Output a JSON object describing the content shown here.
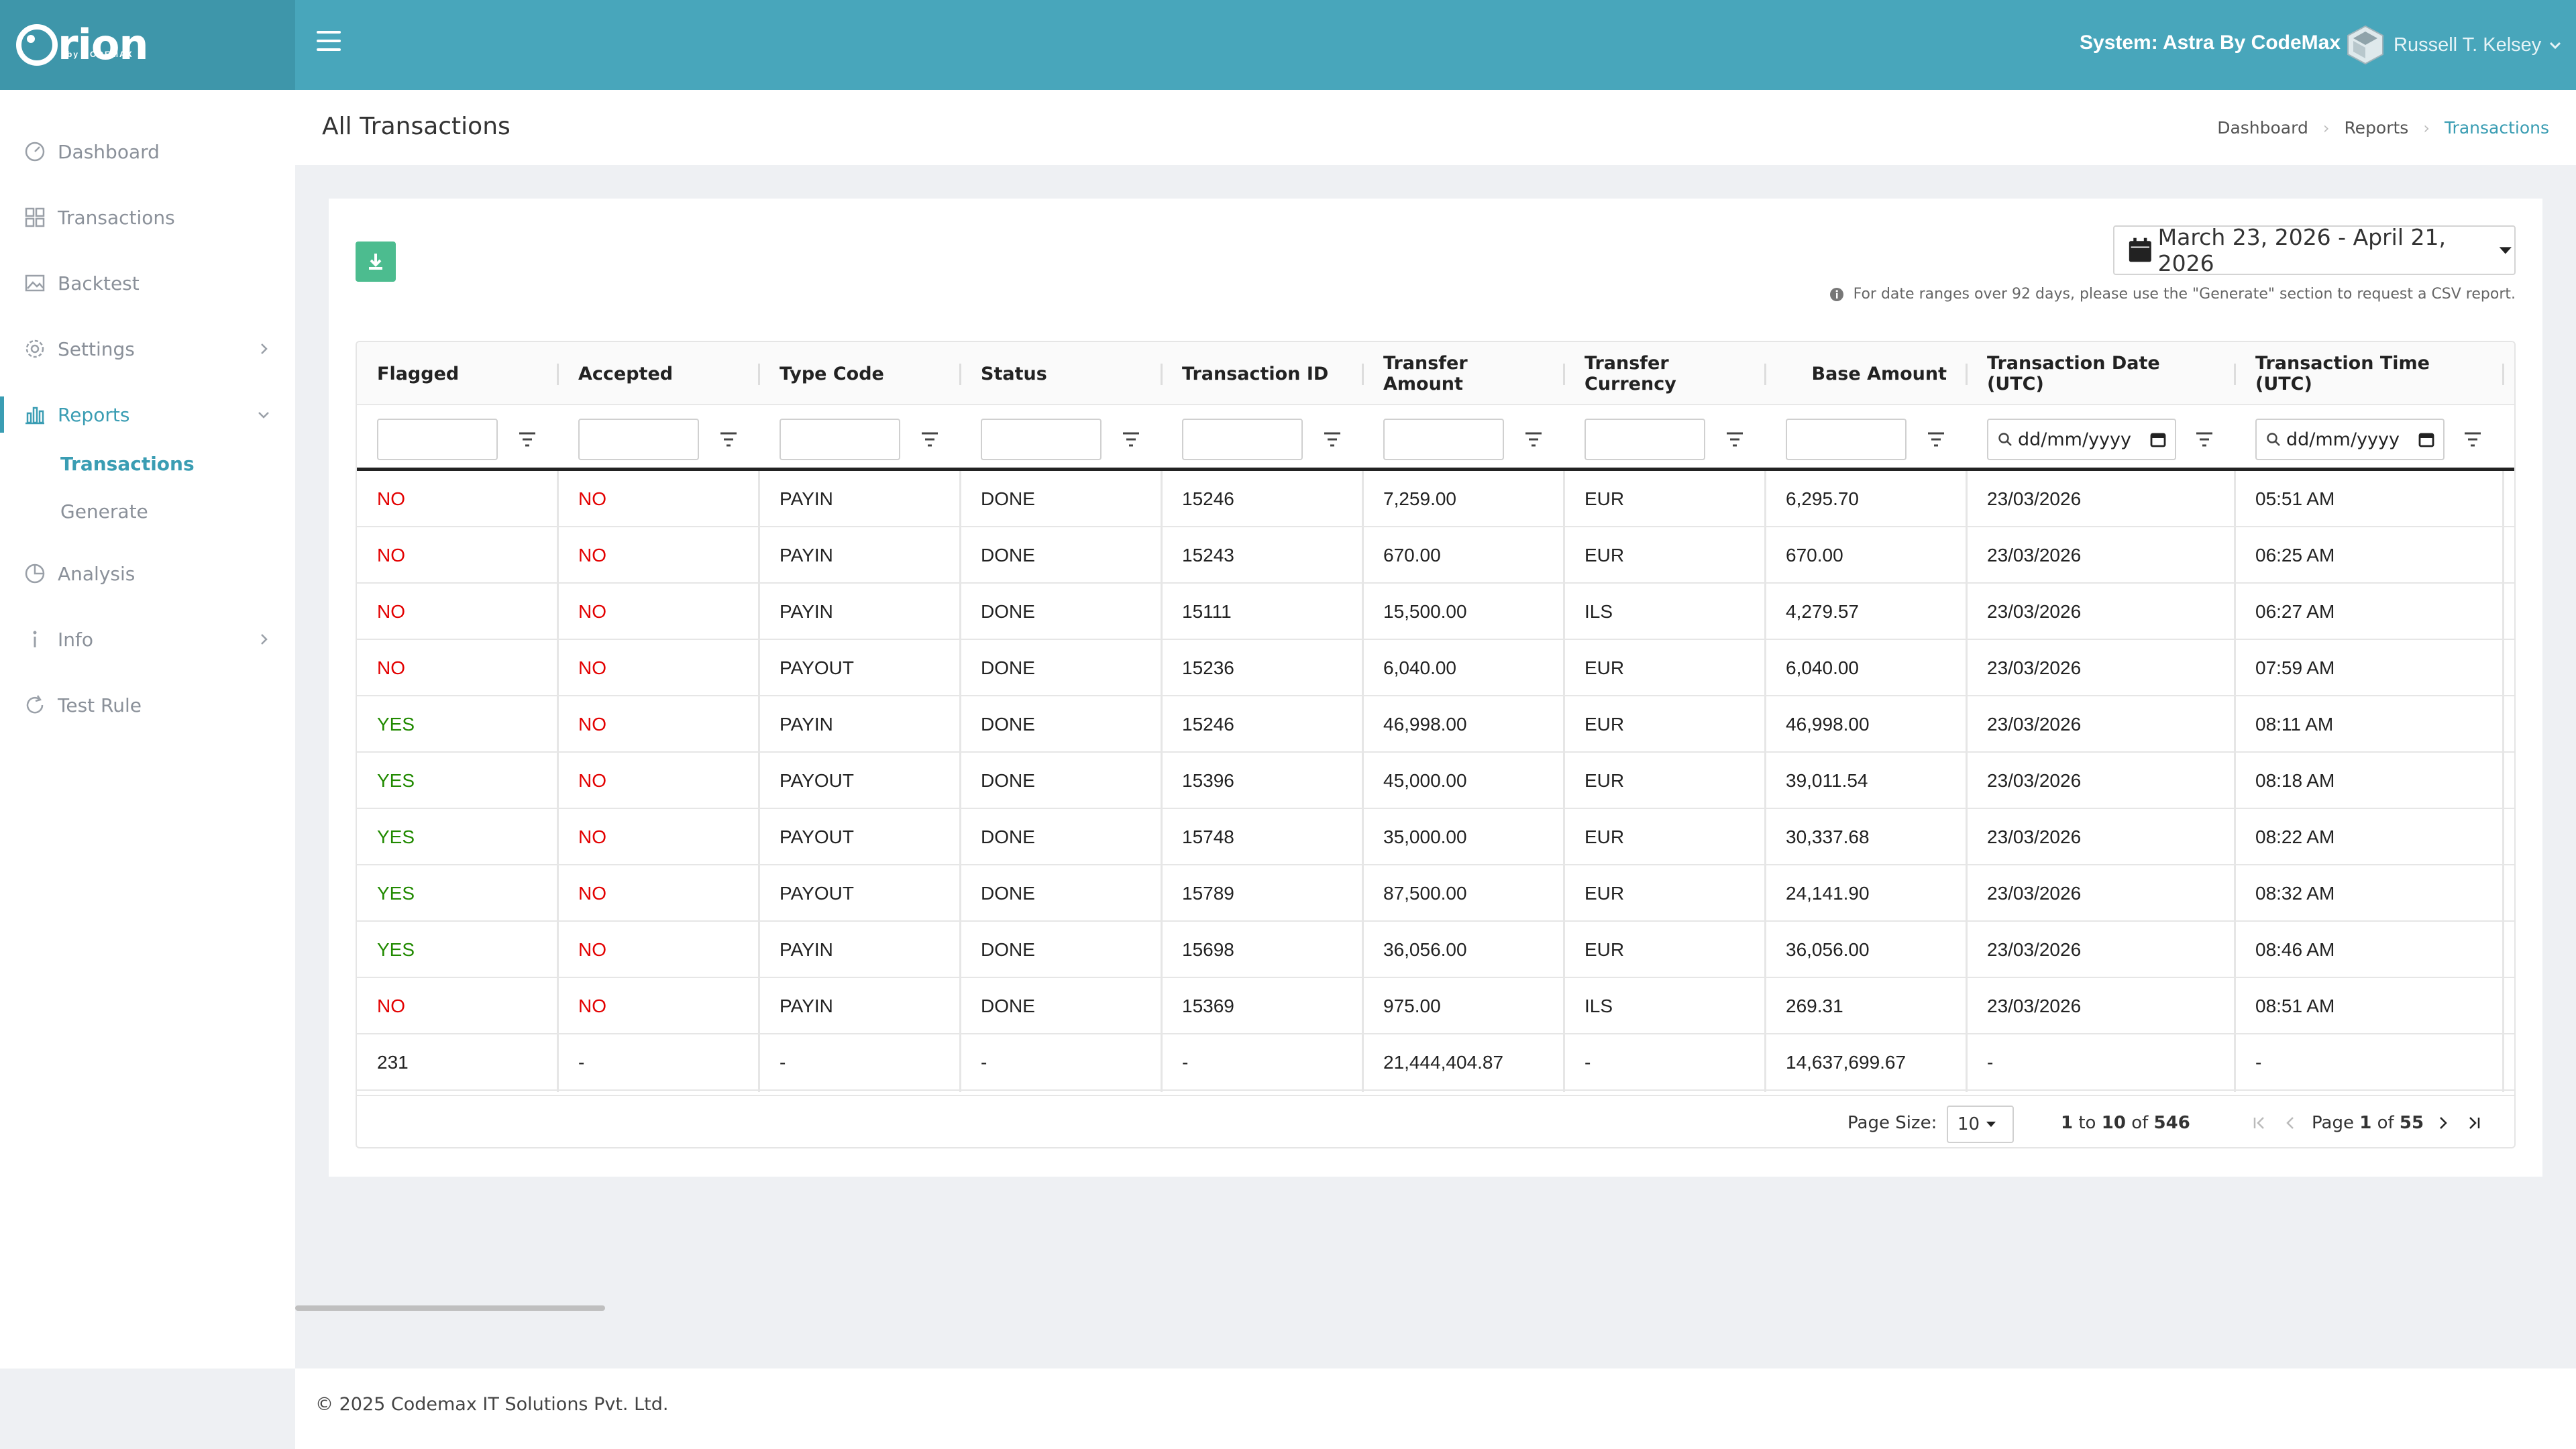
{
  "app": {
    "logo_text": "rion",
    "logo_sub": "by CODEMAX",
    "system_label": "System: Astra By CodeMax",
    "user_name": "Russell T. Kelsey"
  },
  "sidebar": {
    "items": [
      {
        "label": "Dashboard",
        "icon": "dashboard-icon"
      },
      {
        "label": "Transactions",
        "icon": "grid-icon"
      },
      {
        "label": "Backtest",
        "icon": "image-icon"
      },
      {
        "label": "Settings",
        "icon": "gear-icon"
      },
      {
        "label": "Reports",
        "icon": "bar-chart-icon"
      },
      {
        "label": "Analysis",
        "icon": "pie-chart-icon"
      },
      {
        "label": "Info",
        "icon": "info-icon"
      },
      {
        "label": "Test Rule",
        "icon": "refresh-icon"
      }
    ],
    "reports_sub": [
      "Transactions",
      "Generate"
    ]
  },
  "page": {
    "title": "All Transactions",
    "breadcrumbs": [
      "Dashboard",
      "Reports",
      "Transactions"
    ]
  },
  "toolbar": {
    "date_range": "March 23, 2026 - April 21, 2026",
    "note": "For date ranges over 92 days, please use the \"Generate\" section to request a CSV report."
  },
  "table": {
    "columns": [
      "Flagged",
      "Accepted",
      "Type Code",
      "Status",
      "Transaction ID",
      "Transfer Amount",
      "Transfer Currency",
      "Base Amount",
      "Transaction Date (UTC)",
      "Transaction Time (UTC)"
    ],
    "date_placeholder": "dd/mm/yyyy",
    "rows": [
      [
        "NO",
        "NO",
        "PAYIN",
        "DONE",
        "15246",
        "7,259.00",
        "EUR",
        "6,295.70",
        "23/03/2026",
        "05:51 AM"
      ],
      [
        "NO",
        "NO",
        "PAYIN",
        "DONE",
        "15243",
        "670.00",
        "EUR",
        "670.00",
        "23/03/2026",
        "06:25 AM"
      ],
      [
        "NO",
        "NO",
        "PAYIN",
        "DONE",
        "15111",
        "15,500.00",
        "ILS",
        "4,279.57",
        "23/03/2026",
        "06:27 AM"
      ],
      [
        "NO",
        "NO",
        "PAYOUT",
        "DONE",
        "15236",
        "6,040.00",
        "EUR",
        "6,040.00",
        "23/03/2026",
        "07:59 AM"
      ],
      [
        "YES",
        "NO",
        "PAYIN",
        "DONE",
        "15246",
        "46,998.00",
        "EUR",
        "46,998.00",
        "23/03/2026",
        "08:11 AM"
      ],
      [
        "YES",
        "NO",
        "PAYOUT",
        "DONE",
        "15396",
        "45,000.00",
        "EUR",
        "39,011.54",
        "23/03/2026",
        "08:18 AM"
      ],
      [
        "YES",
        "NO",
        "PAYOUT",
        "DONE",
        "15748",
        "35,000.00",
        "EUR",
        "30,337.68",
        "23/03/2026",
        "08:22 AM"
      ],
      [
        "YES",
        "NO",
        "PAYOUT",
        "DONE",
        "15789",
        "87,500.00",
        "EUR",
        "24,141.90",
        "23/03/2026",
        "08:32 AM"
      ],
      [
        "YES",
        "NO",
        "PAYIN",
        "DONE",
        "15698",
        "36,056.00",
        "EUR",
        "36,056.00",
        "23/03/2026",
        "08:46 AM"
      ],
      [
        "NO",
        "NO",
        "PAYIN",
        "DONE",
        "15369",
        "975.00",
        "ILS",
        "269.31",
        "23/03/2026",
        "08:51 AM"
      ]
    ],
    "totals": [
      "231",
      "-",
      "-",
      "-",
      "-",
      "21,444,404.87",
      "-",
      "14,637,699.67",
      "-",
      "-"
    ]
  },
  "pager": {
    "page_size_label": "Page Size:",
    "page_size": "10",
    "range_from": "1",
    "range_to_word": "to",
    "range_to": "10",
    "range_of_word": "of",
    "total": "546",
    "page_word": "Page",
    "page": "1",
    "page_of_word": "of",
    "pages": "55"
  },
  "footer": "© 2025 Codemax IT Solutions Pvt. Ltd.",
  "colors": {
    "topbar": "#48a6bb",
    "accent": "#3a9db3",
    "no": "#e30000",
    "yes": "#218a00",
    "download": "#4cbc8f"
  }
}
